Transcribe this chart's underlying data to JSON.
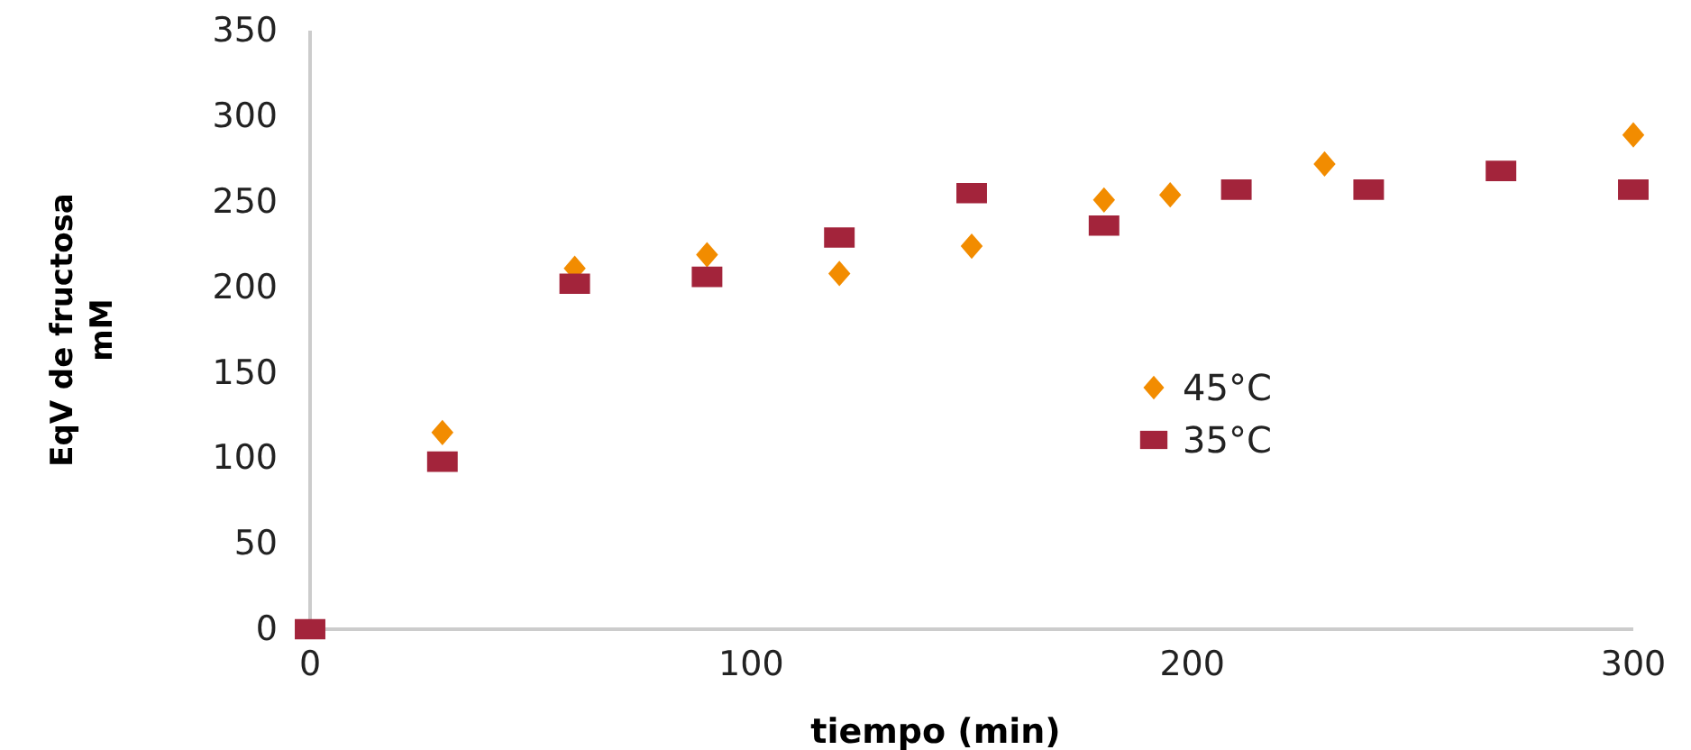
{
  "chart_data": {
    "type": "scatter",
    "xlabel": "tiempo (min)",
    "ylabel": "EqV   de fructosa\nmM",
    "xlim": [
      0,
      300
    ],
    "xticks": [
      0,
      100,
      200,
      300
    ],
    "ylim": [
      0,
      350
    ],
    "yticks": [
      0,
      50,
      100,
      150,
      200,
      250,
      300,
      350
    ],
    "grid": false,
    "legend": "right",
    "series": [
      {
        "name": "45°C",
        "color": "#f28c00",
        "marker": "diamond",
        "x": [
          30,
          60,
          90,
          120,
          150,
          180,
          195,
          230,
          300
        ],
        "values": [
          115,
          211,
          219,
          208,
          224,
          251,
          254,
          272,
          289
        ]
      },
      {
        "name": "35°C",
        "color": "#a3243b",
        "marker": "square",
        "x": [
          0,
          30,
          60,
          90,
          120,
          150,
          180,
          210,
          240,
          270,
          300
        ],
        "values": [
          0,
          98,
          202,
          206,
          229,
          255,
          236,
          257,
          257,
          268,
          257
        ]
      }
    ]
  }
}
